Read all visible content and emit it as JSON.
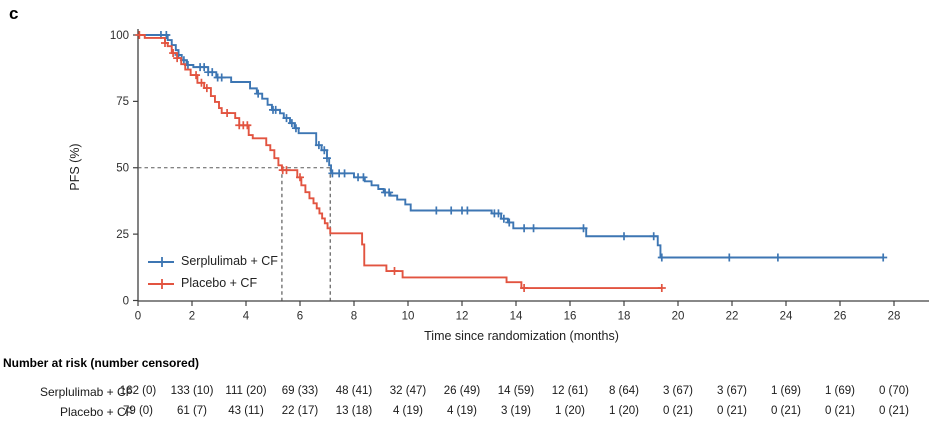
{
  "panel_label": "c",
  "chart_data": {
    "type": "line",
    "subtype": "kaplan-meier-step",
    "title": "",
    "xlabel": "Time since randomization (months)",
    "ylabel": "PFS (%)",
    "xlim": [
      0,
      28.4
    ],
    "ylim": [
      0,
      100
    ],
    "x_ticks": [
      0,
      2,
      4,
      6,
      8,
      10,
      12,
      14,
      16,
      18,
      20,
      22,
      24,
      26,
      28
    ],
    "y_ticks": [
      0,
      25,
      50,
      75,
      100
    ],
    "grid": "off",
    "legend_position": "lower-left",
    "axis_color": "#404040",
    "median_lines": {
      "y": 50,
      "x_values": [
        5.33,
        7.12
      ],
      "color": "#5c5c5c"
    },
    "series": [
      {
        "name": "Serplulimab + CF",
        "color": "#3d76b3",
        "steps": [
          [
            0,
            100
          ],
          [
            1.1,
            98.1
          ],
          [
            1.25,
            96.2
          ],
          [
            1.4,
            94.3
          ],
          [
            1.5,
            92.5
          ],
          [
            1.62,
            90.5
          ],
          [
            1.8,
            88.7
          ],
          [
            2.05,
            87.9
          ],
          [
            2.6,
            86.0
          ],
          [
            2.9,
            84.0
          ],
          [
            3.45,
            82.3
          ],
          [
            4.15,
            79.9
          ],
          [
            4.4,
            77.9
          ],
          [
            4.6,
            76.0
          ],
          [
            4.8,
            73.7
          ],
          [
            4.96,
            71.8
          ],
          [
            5.26,
            70.5
          ],
          [
            5.4,
            68.7
          ],
          [
            5.63,
            66.8
          ],
          [
            5.8,
            64.9
          ],
          [
            5.95,
            63.0
          ],
          [
            6.6,
            58.5
          ],
          [
            6.8,
            56.6
          ],
          [
            7.0,
            53.6
          ],
          [
            7.08,
            50.9
          ],
          [
            7.15,
            47.9
          ],
          [
            8.0,
            46.4
          ],
          [
            8.4,
            44.9
          ],
          [
            8.65,
            43.4
          ],
          [
            8.9,
            42.0
          ],
          [
            9.1,
            40.7
          ],
          [
            9.35,
            39.5
          ],
          [
            9.6,
            38.0
          ],
          [
            9.9,
            36.2
          ],
          [
            10.1,
            33.9
          ],
          [
            13.1,
            32.8
          ],
          [
            13.45,
            30.8
          ],
          [
            13.7,
            29.4
          ],
          [
            13.9,
            27.2
          ],
          [
            16.6,
            24.2
          ],
          [
            19.25,
            20.8
          ],
          [
            19.35,
            16.2
          ],
          [
            27.6,
            16.2
          ]
        ],
        "censor_times": [
          0.85,
          1.05,
          1.5,
          1.7,
          1.85,
          2.3,
          2.45,
          2.6,
          2.75,
          2.95,
          3.1,
          4.45,
          5.0,
          5.1,
          5.5,
          5.7,
          5.85,
          6.7,
          6.9,
          7.0,
          7.2,
          7.45,
          7.65,
          8.15,
          8.35,
          9.15,
          9.3,
          11.05,
          11.6,
          12.0,
          12.2,
          13.2,
          13.35,
          13.55,
          13.75,
          14.3,
          14.65,
          16.5,
          18.0,
          19.1,
          19.4,
          21.9,
          23.7,
          27.6
        ]
      },
      {
        "name": "Placebo + CF",
        "color": "#e25440",
        "steps": [
          [
            0,
            100
          ],
          [
            0.25,
            98.9
          ],
          [
            1.0,
            97.0
          ],
          [
            1.1,
            95.8
          ],
          [
            1.25,
            93.2
          ],
          [
            1.45,
            91.3
          ],
          [
            1.6,
            89.0
          ],
          [
            1.75,
            87.0
          ],
          [
            1.95,
            84.9
          ],
          [
            2.2,
            82.0
          ],
          [
            2.45,
            80.0
          ],
          [
            2.7,
            77.0
          ],
          [
            2.85,
            74.8
          ],
          [
            3.0,
            72.5
          ],
          [
            3.1,
            70.6
          ],
          [
            3.6,
            68.7
          ],
          [
            3.75,
            66.0
          ],
          [
            4.1,
            62.3
          ],
          [
            4.25,
            61.1
          ],
          [
            4.75,
            58.5
          ],
          [
            4.9,
            56.6
          ],
          [
            5.05,
            53.6
          ],
          [
            5.2,
            50.9
          ],
          [
            5.33,
            49.1
          ],
          [
            5.9,
            46.4
          ],
          [
            6.05,
            43.4
          ],
          [
            6.2,
            40.8
          ],
          [
            6.35,
            38.5
          ],
          [
            6.5,
            36.6
          ],
          [
            6.62,
            34.7
          ],
          [
            6.72,
            32.8
          ],
          [
            6.82,
            30.9
          ],
          [
            6.92,
            29.1
          ],
          [
            7.02,
            27.2
          ],
          [
            7.12,
            25.3
          ],
          [
            8.3,
            21.1
          ],
          [
            8.38,
            13.2
          ],
          [
            9.2,
            11.1
          ],
          [
            9.8,
            8.7
          ],
          [
            13.65,
            6.9
          ],
          [
            14.2,
            4.7
          ],
          [
            19.4,
            4.7
          ]
        ],
        "censor_times": [
          0.05,
          1.0,
          1.3,
          1.45,
          2.15,
          2.35,
          2.55,
          3.3,
          3.75,
          3.9,
          4.05,
          5.36,
          5.5,
          6.0,
          9.5,
          14.3,
          19.4
        ]
      }
    ]
  },
  "risk_table": {
    "header": "Number at risk (number censored)",
    "rows": [
      {
        "label": "Serplulimab + CF",
        "values": [
          "162 (0)",
          "133 (10)",
          "111 (20)",
          "69 (33)",
          "48 (41)",
          "32 (47)",
          "26 (49)",
          "14 (59)",
          "12 (61)",
          "8 (64)",
          "3 (67)",
          "3 (67)",
          "1 (69)",
          "1 (69)",
          "0 (70)"
        ]
      },
      {
        "label": "Placebo + CF",
        "values": [
          "79 (0)",
          "61 (7)",
          "43 (11)",
          "22 (17)",
          "13 (18)",
          "4 (19)",
          "4 (19)",
          "3 (19)",
          "1 (20)",
          "1 (20)",
          "0 (21)",
          "0 (21)",
          "0 (21)",
          "0 (21)",
          "0 (21)"
        ]
      }
    ]
  }
}
